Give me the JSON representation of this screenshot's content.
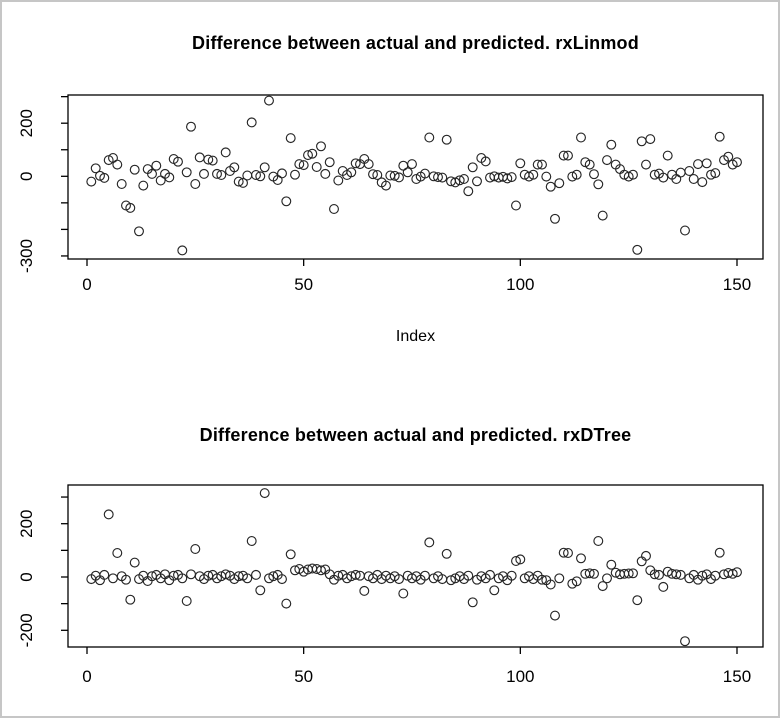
{
  "window": {
    "background": "#ffffff",
    "frame_color": "#c6c6c6",
    "marker_color": "#262626",
    "axis_color": "#000000"
  },
  "chart_data": [
    {
      "type": "scatter",
      "title": "Difference between actual and predicted. rxLinmod",
      "xlabel": "Index",
      "ylabel": "",
      "x_ticks": [
        0,
        50,
        100,
        150
      ],
      "y_ticks": [
        300,
        200,
        100,
        0,
        -100,
        -200,
        -300
      ],
      "y_tick_labels_shown": [
        200,
        0,
        -300
      ],
      "xlim": [
        -4.5,
        156
      ],
      "ylim": [
        -312,
        308
      ],
      "x_start_index": 1,
      "legend": "none",
      "grid": false,
      "values": [
        -20,
        30,
        2,
        -6,
        61,
        69,
        44,
        -29,
        -110,
        -119,
        25,
        -207,
        -35,
        27,
        9,
        40,
        -16,
        9,
        -4,
        65,
        55,
        -279,
        15,
        187,
        -29,
        71,
        9,
        63,
        59,
        9,
        5,
        90,
        20,
        34,
        -20,
        -25,
        3,
        203,
        5,
        0,
        34,
        285,
        -1,
        -14,
        11,
        -94,
        144,
        6,
        46,
        42,
        80,
        85,
        35,
        113,
        9,
        53,
        -123,
        -16,
        20,
        5,
        15,
        49,
        46,
        65,
        46,
        8,
        5,
        -23,
        -35,
        3,
        2,
        -4,
        40,
        15,
        46,
        -10,
        -1,
        10,
        146,
        0,
        -3,
        -5,
        138,
        -19,
        -23,
        -15,
        -10,
        -56,
        34,
        -19,
        69,
        56,
        -5,
        0,
        -5,
        -2,
        -8,
        -3,
        -110,
        49,
        6,
        -1,
        6,
        44,
        44,
        -1,
        -39,
        -160,
        -26,
        78,
        78,
        -1,
        6,
        146,
        53,
        44,
        8,
        -30,
        -148,
        61,
        119,
        44,
        27,
        6,
        -1,
        6,
        -277,
        132,
        44,
        140,
        6,
        10,
        -5,
        78,
        6,
        -10,
        14,
        -204,
        20,
        -10,
        46,
        -22,
        49,
        6,
        12,
        149,
        61,
        74,
        44,
        53
      ]
    },
    {
      "type": "scatter",
      "title": "Difference between actual and predicted. rxDTree",
      "xlabel": "",
      "ylabel": "",
      "x_ticks": [
        0,
        50,
        100,
        150
      ],
      "y_ticks": [
        300,
        200,
        100,
        0,
        -100,
        -200
      ],
      "y_tick_labels_shown": [
        200,
        0,
        -200
      ],
      "xlim": [
        -4.5,
        156
      ],
      "ylim": [
        -262,
        345
      ],
      "x_start_index": 1,
      "legend": "none",
      "grid": false,
      "values": [
        -8,
        5,
        -12,
        8,
        235,
        -5,
        90,
        3,
        -10,
        -85,
        54,
        -8,
        5,
        -15,
        3,
        8,
        -5,
        10,
        -12,
        5,
        8,
        -5,
        -90,
        10,
        105,
        3,
        -8,
        5,
        8,
        -5,
        3,
        10,
        5,
        -8,
        3,
        5,
        -5,
        135,
        8,
        -50,
        315,
        -5,
        3,
        8,
        -8,
        -100,
        85,
        25,
        30,
        20,
        28,
        32,
        30,
        25,
        28,
        10,
        -10,
        5,
        8,
        -5,
        3,
        8,
        5,
        -52,
        3,
        -5,
        8,
        -8,
        5,
        -5,
        3,
        -8,
        -62,
        5,
        -5,
        3,
        -10,
        5,
        130,
        -5,
        3,
        -8,
        87,
        -12,
        -5,
        3,
        -8,
        5,
        -95,
        -10,
        3,
        -5,
        8,
        -50,
        -5,
        3,
        -12,
        5,
        60,
        66,
        -5,
        3,
        -8,
        5,
        -10,
        -12,
        -28,
        -145,
        -5,
        91,
        90,
        -25,
        -16,
        70,
        12,
        14,
        12,
        135,
        -34,
        -5,
        46,
        16,
        10,
        12,
        13,
        14,
        -87,
        59,
        79,
        25,
        10,
        8,
        -37,
        20,
        12,
        10,
        8,
        -241,
        -5,
        8,
        -10,
        5,
        10,
        -8,
        5,
        91,
        10,
        15,
        12,
        18
      ]
    }
  ]
}
